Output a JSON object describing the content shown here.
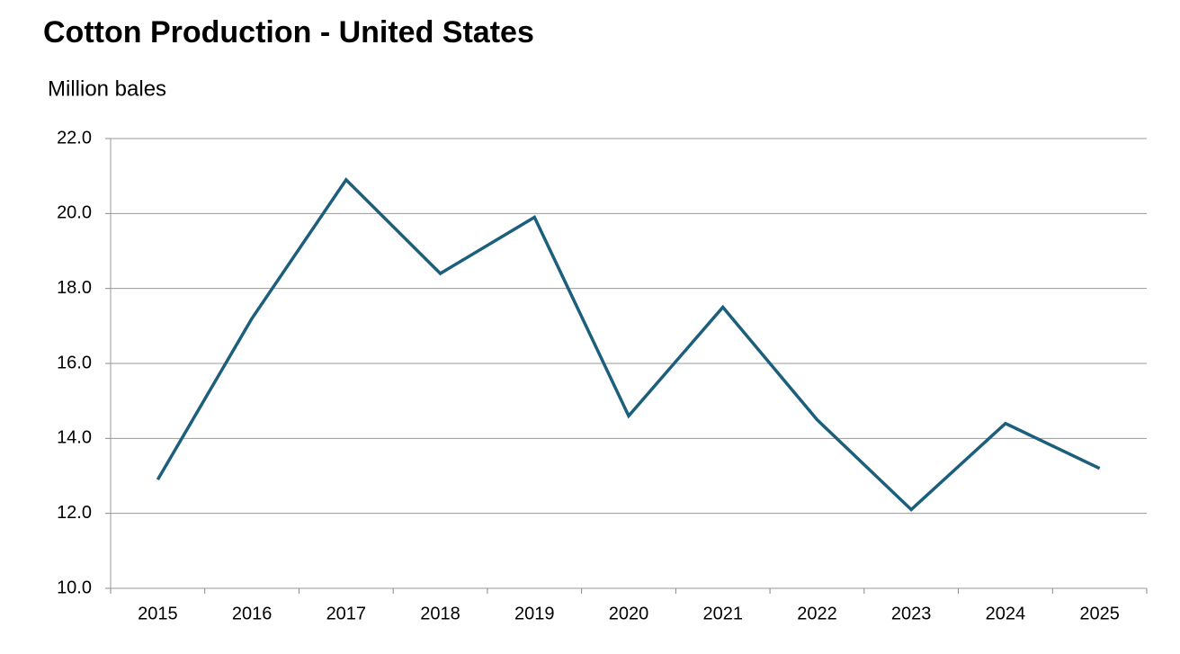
{
  "chart_data": {
    "type": "line",
    "title": "Cotton Production - United States",
    "y_label": "Million bales",
    "categories": [
      "2015",
      "2016",
      "2017",
      "2018",
      "2019",
      "2020",
      "2021",
      "2022",
      "2023",
      "2024",
      "2025"
    ],
    "series": [
      {
        "name": "Cotton production",
        "color": "#1c5f7d",
        "values": [
          12.9,
          17.2,
          20.9,
          18.4,
          19.9,
          14.6,
          17.5,
          14.5,
          12.1,
          14.4,
          13.2
        ]
      }
    ],
    "ylim": [
      10,
      22
    ],
    "yticks": [
      {
        "value": 10,
        "label": "10.0"
      },
      {
        "value": 12,
        "label": "12.0"
      },
      {
        "value": 14,
        "label": "14.0"
      },
      {
        "value": 16,
        "label": "16.0"
      },
      {
        "value": 18,
        "label": "18.0"
      },
      {
        "value": 20,
        "label": "20.0"
      },
      {
        "value": 22,
        "label": "22.0"
      }
    ],
    "grid": true
  }
}
